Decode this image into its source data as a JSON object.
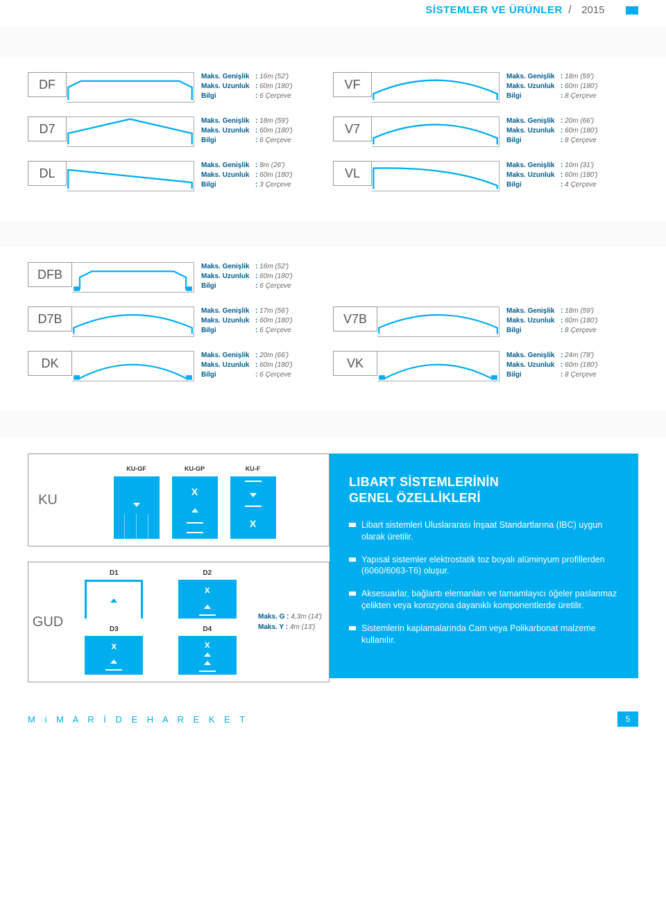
{
  "header": {
    "title": "SİSTEMLER VE ÜRÜNLER",
    "year": "2015"
  },
  "labels": {
    "width": "Maks. Genişlik",
    "length": "Maks. Uzunluk",
    "info": "Bilgi"
  },
  "rows1": [
    {
      "left": {
        "code": "DF",
        "w": "16m (52')",
        "l": "60m (180')",
        "i": "6 Çerçeve",
        "profile": "flat"
      },
      "right": {
        "code": "VF",
        "w": "18m (59')",
        "l": "60m (180')",
        "i": "8 Çerçeve",
        "profile": "arch"
      }
    },
    {
      "left": {
        "code": "D7",
        "w": "18m (59')",
        "l": "60m (180')",
        "i": "6 Çerçeve",
        "profile": "peak"
      },
      "right": {
        "code": "V7",
        "w": "20m (66')",
        "l": "60m (180')",
        "i": "8 Çerçeve",
        "profile": "arch"
      }
    },
    {
      "left": {
        "code": "DL",
        "w": "8m (26')",
        "l": "60m (180')",
        "i": "3 Çerçeve",
        "profile": "lean"
      },
      "right": {
        "code": "VL",
        "w": "10m (31')",
        "l": "60m (180')",
        "i": "4 Çerçeve",
        "profile": "quarter"
      }
    }
  ],
  "rows2": [
    {
      "left": {
        "code": "DFB",
        "w": "16m (52')",
        "l": "60m (180')",
        "i": "6 Çerçeve",
        "profile": "flatB"
      },
      "right": null
    },
    {
      "left": {
        "code": "D7B",
        "w": "17m (56')",
        "l": "60m (180')",
        "i": "6 Çerçeve",
        "profile": "arch"
      },
      "right": {
        "code": "V7B",
        "w": "18m (59')",
        "l": "60m (180')",
        "i": "8 Çerçeve",
        "profile": "arch"
      }
    },
    {
      "left": {
        "code": "DK",
        "w": "20m (66')",
        "l": "60m (180')",
        "i": "6 Çerçeve",
        "profile": "lowArch"
      },
      "right": {
        "code": "VK",
        "w": "24m (78')",
        "l": "60m (180')",
        "i": "8 Çerçeve",
        "profile": "lowArch"
      }
    }
  ],
  "ku": {
    "code": "KU",
    "thumbs": [
      "KU-GF",
      "KU-GP",
      "KU-F"
    ]
  },
  "gud": {
    "code": "GUD",
    "cells": [
      "D1",
      "D2",
      "D3",
      "D4"
    ],
    "spec": [
      {
        "k": "Maks. G",
        "v": "4,3m (14')"
      },
      {
        "k": "Maks. Y",
        "v": "4m (13')"
      }
    ]
  },
  "features": {
    "title1": "LIBART SİSTEMLERİNİN",
    "title2": "GENEL ÖZELLİKLERİ",
    "items": [
      "Libart sistemleri Uluslararası İnşaat Standartlarına (IBC) uygun olarak üretilir.",
      "Yapısal sistemler elektrostatik toz boyalı alüminyum profillerden (6060/6063-T6) oluşur.",
      "Aksesuarlar, bağlantı elemanları ve tamamlayıcı öğeler paslanmaz çelikten veya korozyona dayanıklı komponentlerde üretilir.",
      "Sistemlerin kaplamalarında Cam veya Polikarbonat malzeme kullanılır."
    ]
  },
  "footer": {
    "brand": "M i M A R İ D E   H A R E K E T",
    "page": "5"
  },
  "colors": {
    "accent": "#00aeef",
    "text": "#333",
    "dim": "#666",
    "line": "#999"
  }
}
